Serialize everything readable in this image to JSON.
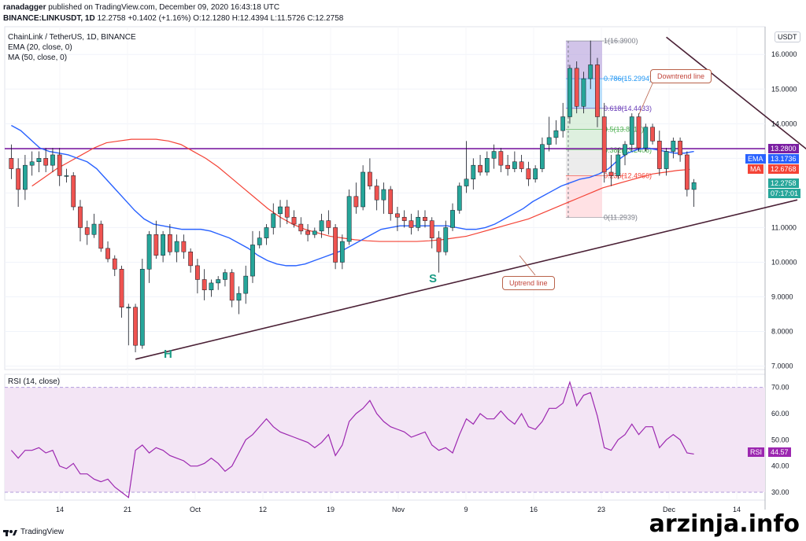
{
  "header": {
    "author": "ranadagger",
    "published": "published on TradingView.com, December 09, 2020 16:43:18 UTC",
    "symbol": "BINANCE:LINKUSDT, 1D",
    "last": "12.2758",
    "change": "+0.1402 (+1.16%)",
    "open_label": "O:",
    "open": "12.1280",
    "high_label": "H:",
    "high": "12.4394",
    "low_label": "L:",
    "low": "11.5726",
    "close_label": "C:",
    "close": "12.2758"
  },
  "legend": {
    "title": "ChainLink / TetherUS, 1D, BINANCE",
    "ema": "EMA (20, close, 0)",
    "ma": "MA (50, close, 0)",
    "rsi": "RSI (14, close)"
  },
  "price_axis": {
    "currency": "USDT",
    "ticks": [
      "16.0000",
      "15.0000",
      "14.0000",
      "13.0000",
      "12.0000",
      "11.0000",
      "10.0000",
      "9.0000",
      "8.0000",
      "7.0000"
    ],
    "resistance_value": "13.2800",
    "ema_tag": "EMA",
    "ema_value": "13.1736",
    "ma_tag": "MA",
    "ma_value": "12.6768",
    "last_value": "12.2758",
    "countdown": "07:17:01"
  },
  "rsi_axis": {
    "ticks": [
      "70.00",
      "60.00",
      "50.00",
      "40.00",
      "30.00"
    ],
    "tag": "RSI",
    "value": "44.57"
  },
  "time_axis": [
    "14",
    "21",
    "Oct",
    "12",
    "19",
    "Nov",
    "9",
    "16",
    "23",
    "Dec",
    "14"
  ],
  "fib": {
    "l1": "1(16.3900)",
    "l786": "0.786(15.2994)",
    "l618": "0.618(14.4433)",
    "l5": "0.5(13.8417)",
    "l382": "0.382(13.2406)",
    "l236": "0.236(12.4966)",
    "l0": "0(11.2939)"
  },
  "annotations": {
    "downtrend": "Downtrend line",
    "uptrend": "Uptrend line",
    "head": "H",
    "shoulder": "S"
  },
  "colors": {
    "up": "#26a69a",
    "down": "#ef5350",
    "ema": "#2962ff",
    "ma": "#f44336",
    "resistance": "#7b1fa2",
    "trend": "#4a2035",
    "rsi": "#9c27b0",
    "rsi_band": "#f3e5f5"
  },
  "chart_data": {
    "type": "candlestick",
    "title": "ChainLink / TetherUS, 1D, BINANCE",
    "ylim": [
      6.9,
      16.8
    ],
    "resistance": 13.28,
    "candles": [
      {
        "o": 13.0,
        "h": 13.4,
        "l": 12.4,
        "c": 12.7
      },
      {
        "o": 12.7,
        "h": 13.0,
        "l": 11.6,
        "c": 12.1
      },
      {
        "o": 12.1,
        "h": 13.1,
        "l": 11.8,
        "c": 12.8
      },
      {
        "o": 12.8,
        "h": 13.2,
        "l": 12.5,
        "c": 12.9
      },
      {
        "o": 12.9,
        "h": 13.2,
        "l": 12.6,
        "c": 13.0
      },
      {
        "o": 13.0,
        "h": 13.3,
        "l": 12.6,
        "c": 12.8
      },
      {
        "o": 12.8,
        "h": 13.3,
        "l": 12.6,
        "c": 13.1
      },
      {
        "o": 13.1,
        "h": 13.3,
        "l": 12.2,
        "c": 12.5
      },
      {
        "o": 12.5,
        "h": 12.7,
        "l": 12.3,
        "c": 12.5
      },
      {
        "o": 12.5,
        "h": 12.6,
        "l": 11.5,
        "c": 11.6
      },
      {
        "o": 11.6,
        "h": 11.8,
        "l": 10.6,
        "c": 11.0
      },
      {
        "o": 11.0,
        "h": 11.2,
        "l": 10.5,
        "c": 10.8
      },
      {
        "o": 10.8,
        "h": 11.4,
        "l": 10.7,
        "c": 11.1
      },
      {
        "o": 11.1,
        "h": 11.2,
        "l": 10.3,
        "c": 10.4
      },
      {
        "o": 10.4,
        "h": 10.6,
        "l": 10.0,
        "c": 10.1
      },
      {
        "o": 10.1,
        "h": 10.2,
        "l": 9.6,
        "c": 9.8
      },
      {
        "o": 9.8,
        "h": 9.9,
        "l": 8.4,
        "c": 8.7
      },
      {
        "o": 8.7,
        "h": 8.8,
        "l": 7.6,
        "c": 8.7
      },
      {
        "o": 8.7,
        "h": 8.8,
        "l": 7.4,
        "c": 7.6
      },
      {
        "o": 7.6,
        "h": 10.1,
        "l": 7.5,
        "c": 9.8
      },
      {
        "o": 9.8,
        "h": 10.9,
        "l": 9.4,
        "c": 10.8
      },
      {
        "o": 10.8,
        "h": 11.2,
        "l": 10.1,
        "c": 10.2
      },
      {
        "o": 10.2,
        "h": 10.9,
        "l": 10.0,
        "c": 10.8
      },
      {
        "o": 10.8,
        "h": 11.1,
        "l": 10.2,
        "c": 10.3
      },
      {
        "o": 10.3,
        "h": 10.8,
        "l": 10.0,
        "c": 10.6
      },
      {
        "o": 10.6,
        "h": 10.8,
        "l": 10.1,
        "c": 10.3
      },
      {
        "o": 10.3,
        "h": 10.4,
        "l": 9.7,
        "c": 9.9
      },
      {
        "o": 9.9,
        "h": 10.1,
        "l": 9.1,
        "c": 9.5
      },
      {
        "o": 9.5,
        "h": 9.8,
        "l": 8.9,
        "c": 9.2
      },
      {
        "o": 9.2,
        "h": 9.5,
        "l": 9.0,
        "c": 9.4
      },
      {
        "o": 9.4,
        "h": 9.6,
        "l": 9.2,
        "c": 9.5
      },
      {
        "o": 9.5,
        "h": 9.8,
        "l": 9.3,
        "c": 9.7
      },
      {
        "o": 9.7,
        "h": 9.8,
        "l": 8.7,
        "c": 8.9
      },
      {
        "o": 8.9,
        "h": 9.3,
        "l": 8.5,
        "c": 9.1
      },
      {
        "o": 9.1,
        "h": 9.9,
        "l": 8.8,
        "c": 9.6
      },
      {
        "o": 9.6,
        "h": 10.9,
        "l": 9.4,
        "c": 10.5
      },
      {
        "o": 10.5,
        "h": 10.9,
        "l": 10.4,
        "c": 10.7
      },
      {
        "o": 10.7,
        "h": 11.1,
        "l": 10.5,
        "c": 11.0
      },
      {
        "o": 11.0,
        "h": 11.7,
        "l": 10.8,
        "c": 11.4
      },
      {
        "o": 11.4,
        "h": 11.8,
        "l": 11.0,
        "c": 11.6
      },
      {
        "o": 11.6,
        "h": 11.8,
        "l": 11.1,
        "c": 11.3
      },
      {
        "o": 11.3,
        "h": 11.5,
        "l": 11.0,
        "c": 11.1
      },
      {
        "o": 11.1,
        "h": 11.3,
        "l": 10.8,
        "c": 10.9
      },
      {
        "o": 10.9,
        "h": 11.1,
        "l": 10.6,
        "c": 10.8
      },
      {
        "o": 10.8,
        "h": 11.0,
        "l": 10.7,
        "c": 10.9
      },
      {
        "o": 10.9,
        "h": 11.4,
        "l": 10.7,
        "c": 11.2
      },
      {
        "o": 11.2,
        "h": 11.5,
        "l": 10.8,
        "c": 11.0
      },
      {
        "o": 11.0,
        "h": 11.1,
        "l": 9.8,
        "c": 10.0
      },
      {
        "o": 10.0,
        "h": 10.8,
        "l": 9.8,
        "c": 10.6
      },
      {
        "o": 10.6,
        "h": 12.1,
        "l": 10.5,
        "c": 11.9
      },
      {
        "o": 11.9,
        "h": 12.3,
        "l": 11.4,
        "c": 11.6
      },
      {
        "o": 11.6,
        "h": 12.8,
        "l": 11.5,
        "c": 12.6
      },
      {
        "o": 12.6,
        "h": 13.0,
        "l": 12.1,
        "c": 12.2
      },
      {
        "o": 12.2,
        "h": 12.4,
        "l": 11.5,
        "c": 11.8
      },
      {
        "o": 11.8,
        "h": 12.3,
        "l": 11.4,
        "c": 12.1
      },
      {
        "o": 12.1,
        "h": 12.2,
        "l": 11.2,
        "c": 11.4
      },
      {
        "o": 11.4,
        "h": 11.6,
        "l": 10.9,
        "c": 11.3
      },
      {
        "o": 11.3,
        "h": 11.5,
        "l": 11.0,
        "c": 11.2
      },
      {
        "o": 11.2,
        "h": 11.4,
        "l": 10.8,
        "c": 11.0
      },
      {
        "o": 11.0,
        "h": 11.5,
        "l": 10.9,
        "c": 11.3
      },
      {
        "o": 11.3,
        "h": 11.5,
        "l": 11.0,
        "c": 11.2
      },
      {
        "o": 11.2,
        "h": 11.3,
        "l": 10.4,
        "c": 10.7
      },
      {
        "o": 10.7,
        "h": 10.9,
        "l": 9.7,
        "c": 10.3
      },
      {
        "o": 10.3,
        "h": 11.2,
        "l": 10.2,
        "c": 11.0
      },
      {
        "o": 11.0,
        "h": 11.7,
        "l": 10.9,
        "c": 11.5
      },
      {
        "o": 11.5,
        "h": 12.3,
        "l": 11.4,
        "c": 12.2
      },
      {
        "o": 12.2,
        "h": 13.5,
        "l": 12.0,
        "c": 12.4
      },
      {
        "o": 12.4,
        "h": 13.0,
        "l": 12.1,
        "c": 12.8
      },
      {
        "o": 12.8,
        "h": 13.1,
        "l": 12.5,
        "c": 12.6
      },
      {
        "o": 12.6,
        "h": 13.2,
        "l": 12.5,
        "c": 13.0
      },
      {
        "o": 13.0,
        "h": 13.4,
        "l": 12.7,
        "c": 13.2
      },
      {
        "o": 13.2,
        "h": 13.3,
        "l": 12.6,
        "c": 12.8
      },
      {
        "o": 12.8,
        "h": 13.1,
        "l": 12.5,
        "c": 12.7
      },
      {
        "o": 12.7,
        "h": 13.2,
        "l": 12.6,
        "c": 12.9
      },
      {
        "o": 12.9,
        "h": 13.1,
        "l": 12.6,
        "c": 12.7
      },
      {
        "o": 12.7,
        "h": 12.9,
        "l": 12.2,
        "c": 12.4
      },
      {
        "o": 12.4,
        "h": 12.8,
        "l": 12.3,
        "c": 12.7
      },
      {
        "o": 12.7,
        "h": 13.6,
        "l": 12.6,
        "c": 13.4
      },
      {
        "o": 13.4,
        "h": 14.2,
        "l": 13.2,
        "c": 13.6
      },
      {
        "o": 13.6,
        "h": 14.1,
        "l": 13.4,
        "c": 13.8
      },
      {
        "o": 13.8,
        "h": 14.6,
        "l": 13.6,
        "c": 14.2
      },
      {
        "o": 14.2,
        "h": 15.7,
        "l": 14.0,
        "c": 15.6
      },
      {
        "o": 15.6,
        "h": 15.8,
        "l": 14.3,
        "c": 14.5
      },
      {
        "o": 14.5,
        "h": 15.5,
        "l": 14.3,
        "c": 15.3
      },
      {
        "o": 15.3,
        "h": 16.4,
        "l": 15.0,
        "c": 15.7
      },
      {
        "o": 15.7,
        "h": 15.9,
        "l": 13.9,
        "c": 14.2
      },
      {
        "o": 14.2,
        "h": 14.6,
        "l": 12.3,
        "c": 12.6
      },
      {
        "o": 12.6,
        "h": 13.1,
        "l": 12.2,
        "c": 12.5
      },
      {
        "o": 12.5,
        "h": 13.3,
        "l": 12.4,
        "c": 13.1
      },
      {
        "o": 13.1,
        "h": 13.5,
        "l": 12.8,
        "c": 13.4
      },
      {
        "o": 13.4,
        "h": 14.3,
        "l": 13.2,
        "c": 14.2
      },
      {
        "o": 14.2,
        "h": 14.3,
        "l": 13.2,
        "c": 13.3
      },
      {
        "o": 13.3,
        "h": 14.0,
        "l": 13.2,
        "c": 13.9
      },
      {
        "o": 13.9,
        "h": 14.0,
        "l": 13.4,
        "c": 13.5
      },
      {
        "o": 13.5,
        "h": 13.8,
        "l": 12.5,
        "c": 12.7
      },
      {
        "o": 12.7,
        "h": 13.3,
        "l": 12.5,
        "c": 13.2
      },
      {
        "o": 13.2,
        "h": 13.6,
        "l": 13.0,
        "c": 13.5
      },
      {
        "o": 13.5,
        "h": 13.6,
        "l": 12.9,
        "c": 13.1
      },
      {
        "o": 13.1,
        "h": 13.2,
        "l": 11.9,
        "c": 12.1
      },
      {
        "o": 12.1,
        "h": 12.4,
        "l": 11.6,
        "c": 12.3
      }
    ],
    "ema20": [
      13.95,
      13.8,
      13.55,
      13.3,
      13.2,
      13.15,
      13.1,
      13.0,
      12.9,
      12.7,
      12.4,
      12.1,
      11.8,
      11.5,
      11.25,
      11.1,
      11.05,
      11.0,
      10.95,
      10.95,
      10.95,
      10.9,
      10.8,
      10.7,
      10.55,
      10.4,
      10.2,
      10.05,
      9.95,
      9.9,
      9.9,
      9.95,
      10.05,
      10.15,
      10.25,
      10.35,
      10.5,
      10.65,
      10.8,
      10.95,
      11.0,
      11.05,
      11.05,
      11.05,
      11.05,
      11.05,
      11.05,
      11.0,
      10.95,
      10.95,
      11.0,
      11.1,
      11.25,
      11.4,
      11.55,
      11.75,
      11.9,
      12.05,
      12.2,
      12.3,
      12.4,
      12.45,
      12.55,
      12.7,
      12.95,
      13.15,
      13.25,
      13.3,
      13.25,
      13.2,
      13.15,
      13.15,
      13.2
    ],
    "ema20_start": 0,
    "ma50": [
      12.2,
      12.45,
      12.7,
      12.9,
      13.1,
      13.3,
      13.45,
      13.5,
      13.55,
      13.55,
      13.55,
      13.5,
      13.4,
      13.2,
      13.0,
      12.75,
      12.45,
      12.15,
      11.85,
      11.55,
      11.3,
      11.1,
      10.95,
      10.85,
      10.75,
      10.7,
      10.65,
      10.62,
      10.6,
      10.6,
      10.6,
      10.6,
      10.62,
      10.65,
      10.7,
      10.75,
      10.85,
      10.95,
      11.05,
      11.15,
      11.25,
      11.4,
      11.55,
      11.7,
      11.85,
      12.0,
      12.15,
      12.25,
      12.35,
      12.45,
      12.55,
      12.6,
      12.65,
      12.68
    ],
    "ma50_start": 3,
    "ma50_step": 1.8,
    "rsi": [
      46,
      43,
      46,
      46,
      47,
      45,
      46,
      40,
      39,
      41,
      37,
      37,
      35,
      34,
      35,
      32,
      30,
      28,
      46,
      48,
      45,
      47,
      46,
      44,
      43,
      42,
      40,
      40,
      41,
      43,
      41,
      38,
      40,
      45,
      50,
      52,
      55,
      58,
      55,
      53,
      52,
      51,
      50,
      49,
      47,
      49,
      52,
      44,
      48,
      57,
      60,
      62,
      65,
      60,
      57,
      55,
      54,
      53,
      51,
      52,
      53,
      48,
      46,
      47,
      45,
      52,
      58,
      56,
      60,
      58,
      58,
      61,
      58,
      56,
      60,
      55,
      54,
      57,
      62,
      62,
      64,
      72,
      63,
      67,
      68,
      59,
      47,
      46,
      50,
      52,
      56,
      52,
      55,
      55,
      47,
      50,
      52,
      50,
      45,
      44.57
    ],
    "rsi_ylim": [
      27,
      75
    ],
    "fib_levels": [
      16.39,
      15.2994,
      14.4433,
      13.8417,
      13.2406,
      12.4966,
      11.2939
    ],
    "uptrend_line": [
      [
        18,
        7.2
      ],
      [
        114,
        11.8
      ]
    ],
    "downtrend_line": [
      [
        95,
        16.5
      ],
      [
        117,
        13.0
      ]
    ]
  }
}
